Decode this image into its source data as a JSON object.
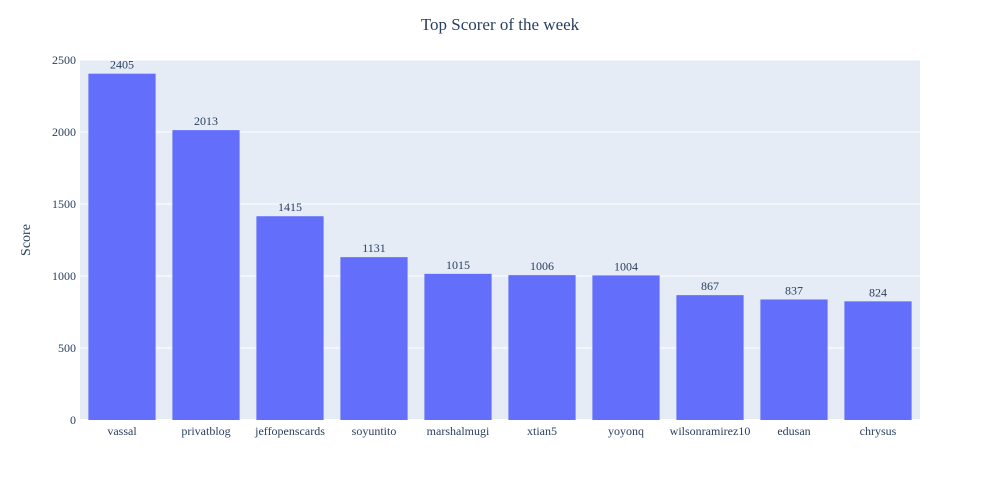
{
  "chart_data": {
    "type": "bar",
    "title": "Top Scorer of the week",
    "xlabel": "",
    "ylabel": "Score",
    "categories": [
      "vassal",
      "privatblog",
      "jeffopenscards",
      "soyuntito",
      "marshalmugi",
      "xtian5",
      "yoyonq",
      "wilsonramirez10",
      "edusan",
      "chrysus"
    ],
    "values": [
      2405,
      2013,
      1415,
      1131,
      1015,
      1006,
      1004,
      867,
      837,
      824
    ],
    "ylim": [
      0,
      2500
    ],
    "yticks": [
      0,
      500,
      1000,
      1500,
      2000,
      2500
    ],
    "grid": true,
    "legend": "none",
    "colors": {
      "bar": "#636efa",
      "plot_bg": "#e5ecf6",
      "grid": "#ffffff",
      "text": "#2a3f5f"
    }
  }
}
